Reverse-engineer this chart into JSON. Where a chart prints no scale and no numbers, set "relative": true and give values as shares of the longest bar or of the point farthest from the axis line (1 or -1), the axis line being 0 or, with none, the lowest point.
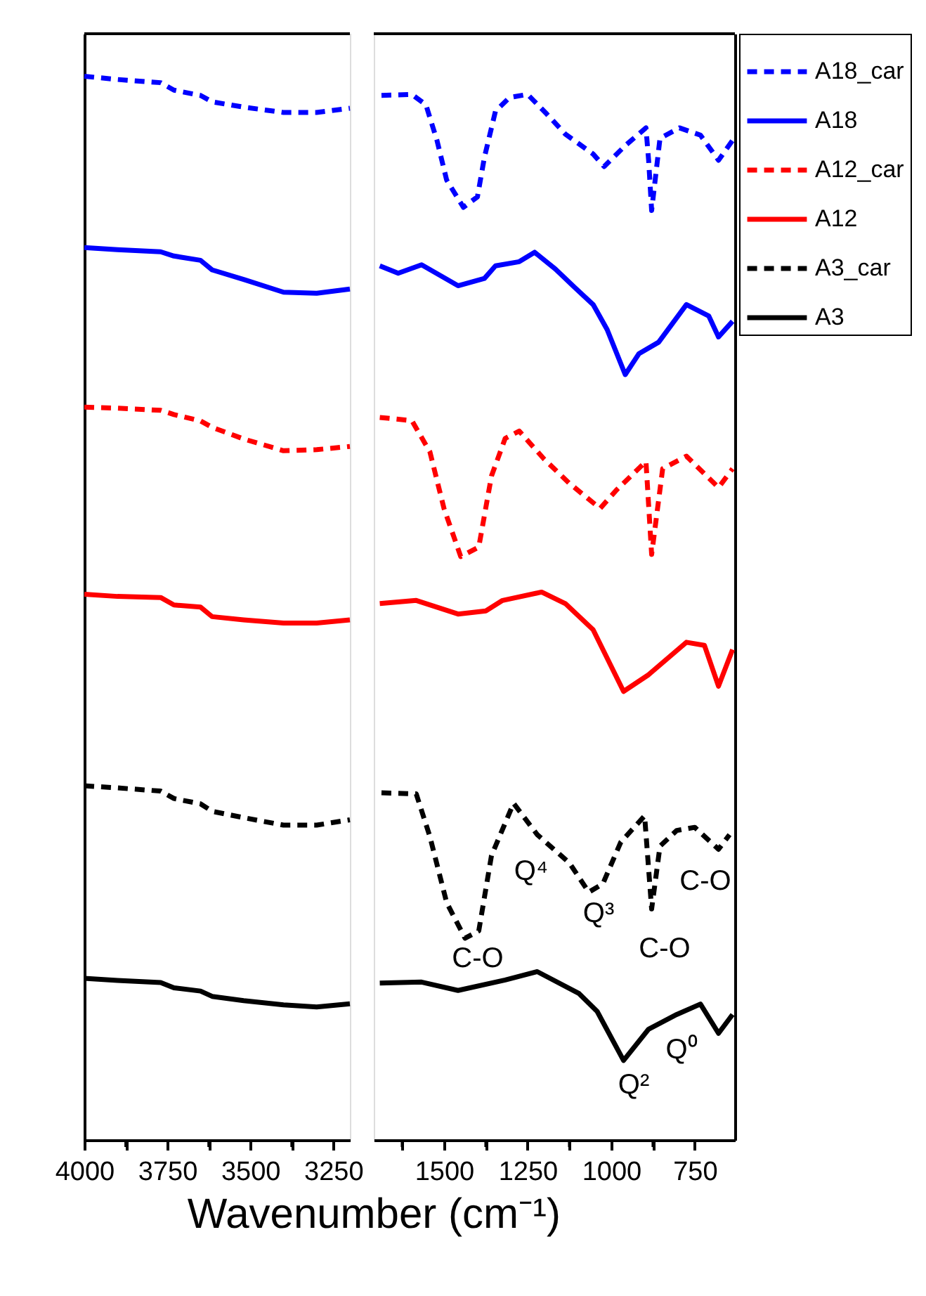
{
  "chart_data": [
    {
      "type": "line",
      "relative": true,
      "tick_labels": "x",
      "xlabel": "Wavenumber (cm⁻¹)",
      "xlim": [
        4000,
        3200
      ],
      "xticks": [
        4000,
        {
          "value": 3875,
          "label": null
        },
        3750,
        {
          "value": 3625,
          "label": null
        },
        3500,
        {
          "value": 3375,
          "label": null
        },
        3250
      ],
      "series": [
        {
          "color": "#0000ff",
          "line_style": "dashed",
          "x": [
            4000,
            3900,
            3770,
            3730,
            3650,
            3615,
            3520,
            3400,
            3300,
            3200
          ],
          "values": [
            1.0,
            0.997,
            0.994,
            0.987,
            0.982,
            0.976,
            0.971,
            0.966,
            0.966,
            0.97
          ]
        },
        {
          "color": "#0000ff",
          "line_style": "solid",
          "x": [
            4000,
            3900,
            3770,
            3730,
            3650,
            3615,
            3520,
            3400,
            3300,
            3200
          ],
          "values": [
            0.839,
            0.837,
            0.835,
            0.831,
            0.827,
            0.818,
            0.809,
            0.797,
            0.796,
            0.8
          ]
        },
        {
          "color": "#ff0000",
          "line_style": "dashed",
          "x": [
            4000,
            3900,
            3770,
            3730,
            3650,
            3615,
            3520,
            3400,
            3300,
            3200
          ],
          "values": [
            0.689,
            0.688,
            0.686,
            0.682,
            0.676,
            0.67,
            0.659,
            0.648,
            0.649,
            0.652
          ]
        },
        {
          "color": "#ff0000",
          "line_style": "solid",
          "x": [
            4000,
            3900,
            3770,
            3730,
            3650,
            3615,
            3520,
            3400,
            3300,
            3200
          ],
          "values": [
            0.513,
            0.511,
            0.51,
            0.503,
            0.501,
            0.492,
            0.489,
            0.486,
            0.486,
            0.489
          ]
        },
        {
          "color": "#000000",
          "line_style": "dashed",
          "x": [
            4000,
            3900,
            3770,
            3730,
            3650,
            3615,
            3520,
            3400,
            3300,
            3200
          ],
          "values": [
            0.333,
            0.331,
            0.328,
            0.321,
            0.316,
            0.309,
            0.303,
            0.296,
            0.296,
            0.301
          ]
        },
        {
          "color": "#000000",
          "line_style": "solid",
          "x": [
            4000,
            3900,
            3770,
            3730,
            3650,
            3615,
            3520,
            3400,
            3300,
            3200
          ],
          "values": [
            0.152,
            0.15,
            0.148,
            0.143,
            0.14,
            0.135,
            0.131,
            0.127,
            0.125,
            0.128
          ]
        }
      ]
    },
    {
      "type": "line",
      "relative": true,
      "tick_labels": "x",
      "legend": "top right",
      "xlim": [
        1710,
        630
      ],
      "xticks": [
        {
          "value": 1625,
          "label": null
        },
        1500,
        {
          "value": 1375,
          "label": null
        },
        1250,
        {
          "value": 1125,
          "label": null
        },
        1000,
        {
          "value": 875,
          "label": null
        },
        750
      ],
      "series": [
        {
          "name": "A18_car",
          "color": "#0000ff",
          "line_style": "dashed",
          "x": [
            1687,
            1596,
            1554,
            1521,
            1492,
            1442,
            1400,
            1379,
            1346,
            1304,
            1250,
            1192,
            1137,
            1054,
            1021,
            958,
            896,
            888,
            879,
            854,
            796,
            733,
            679,
            637
          ],
          "values": [
            0.999,
            1.0,
            0.99,
            0.956,
            0.918,
            0.892,
            0.902,
            0.94,
            0.984,
            0.997,
            1.0,
            0.981,
            0.962,
            0.943,
            0.931,
            0.951,
            0.968,
            0.937,
            0.889,
            0.958,
            0.968,
            0.961,
            0.937,
            0.956
          ]
        },
        {
          "name": "A18",
          "color": "#0000ff",
          "line_style": "solid",
          "x": [
            1692,
            1637,
            1567,
            1458,
            1379,
            1346,
            1275,
            1229,
            1167,
            1108,
            1054,
            1012,
            958,
            917,
            858,
            775,
            708,
            679,
            637
          ],
          "values": [
            0.836,
            0.829,
            0.837,
            0.817,
            0.824,
            0.836,
            0.84,
            0.849,
            0.833,
            0.815,
            0.799,
            0.775,
            0.732,
            0.752,
            0.763,
            0.799,
            0.788,
            0.768,
            0.783
          ]
        },
        {
          "name": "A12_car",
          "color": "#ff0000",
          "line_style": "dashed",
          "x": [
            1692,
            1596,
            1542,
            1500,
            1450,
            1396,
            1358,
            1317,
            1275,
            1200,
            1125,
            1033,
            983,
            896,
            879,
            846,
            775,
            679,
            637
          ],
          "values": [
            0.691,
            0.688,
            0.658,
            0.604,
            0.558,
            0.567,
            0.635,
            0.671,
            0.678,
            0.651,
            0.628,
            0.604,
            0.622,
            0.649,
            0.56,
            0.642,
            0.654,
            0.624,
            0.642
          ]
        },
        {
          "name": "A12",
          "color": "#ff0000",
          "line_style": "solid",
          "x": [
            1692,
            1583,
            1458,
            1375,
            1325,
            1208,
            1137,
            1054,
            963,
            888,
            775,
            721,
            679,
            637
          ],
          "values": [
            0.513,
            0.516,
            0.503,
            0.506,
            0.516,
            0.524,
            0.513,
            0.488,
            0.429,
            0.445,
            0.476,
            0.473,
            0.434,
            0.469
          ]
        },
        {
          "name": "A3_car",
          "color": "#000000",
          "line_style": "dashed",
          "x": [
            1687,
            1583,
            1542,
            1492,
            1437,
            1396,
            1358,
            1292,
            1221,
            1125,
            1067,
            1025,
            971,
            900,
            879,
            854,
            804,
            750,
            679,
            646
          ],
          "values": [
            0.332,
            0.331,
            0.29,
            0.227,
            0.193,
            0.2,
            0.272,
            0.322,
            0.292,
            0.265,
            0.237,
            0.245,
            0.285,
            0.31,
            0.221,
            0.281,
            0.296,
            0.299,
            0.278,
            0.292
          ]
        },
        {
          "name": "A3",
          "color": "#000000",
          "line_style": "solid",
          "x": [
            1692,
            1567,
            1458,
            1317,
            1221,
            1096,
            1042,
            963,
            888,
            804,
            733,
            679,
            637
          ],
          "values": [
            0.15,
            0.151,
            0.143,
            0.153,
            0.161,
            0.14,
            0.123,
            0.076,
            0.106,
            0.12,
            0.13,
            0.102,
            0.12
          ]
        }
      ],
      "annotations": [
        "C-O",
        "Q⁴",
        "Q³",
        "C-O",
        "C-O",
        "Q²",
        "Q⁰"
      ]
    }
  ]
}
